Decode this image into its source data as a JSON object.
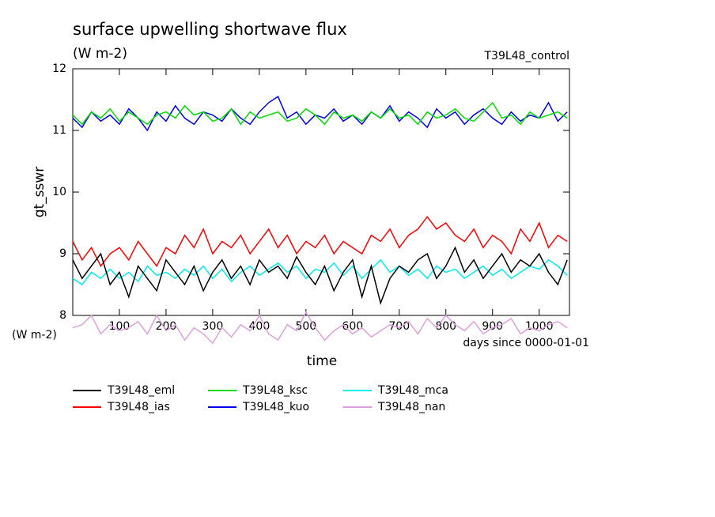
{
  "chart_data": {
    "type": "line",
    "title": "surface upwelling shortwave flux",
    "subtitle": "(W m-2)",
    "run_label": "T39L48_control",
    "y_label": "gt_sswr",
    "x_label": "time",
    "x_unit_note": "days since 0000-01-01",
    "value_unit_note": "(W m-2)",
    "xlim": [
      0,
      1065
    ],
    "ylim": [
      8,
      12
    ],
    "xticks": [
      100,
      200,
      300,
      400,
      500,
      600,
      700,
      800,
      900,
      1000
    ],
    "yticks": [
      8,
      9,
      10,
      11,
      12
    ],
    "x": [
      0,
      20,
      40,
      60,
      80,
      100,
      120,
      140,
      160,
      180,
      200,
      220,
      240,
      260,
      280,
      300,
      320,
      340,
      360,
      380,
      400,
      420,
      440,
      460,
      480,
      500,
      520,
      540,
      560,
      580,
      600,
      620,
      640,
      660,
      680,
      700,
      720,
      740,
      760,
      780,
      800,
      820,
      840,
      860,
      880,
      900,
      920,
      940,
      960,
      980,
      1000,
      1020,
      1040,
      1060
    ],
    "series": [
      {
        "name": "T39L48_eml",
        "color": "#000000",
        "values": [
          8.9,
          8.6,
          8.8,
          9.0,
          8.5,
          8.7,
          8.3,
          8.8,
          8.6,
          8.4,
          8.9,
          8.7,
          8.5,
          8.8,
          8.4,
          8.7,
          8.9,
          8.6,
          8.8,
          8.5,
          8.9,
          8.7,
          8.8,
          8.6,
          8.95,
          8.7,
          8.5,
          8.8,
          8.4,
          8.7,
          8.9,
          8.3,
          8.8,
          8.2,
          8.6,
          8.8,
          8.7,
          8.9,
          9.0,
          8.6,
          8.8,
          9.1,
          8.7,
          8.9,
          8.6,
          8.8,
          9.0,
          8.7,
          8.9,
          8.8,
          9.0,
          8.7,
          8.5,
          8.9
        ]
      },
      {
        "name": "T39L48_ias",
        "color": "#ff0000",
        "values": [
          9.2,
          8.9,
          9.1,
          8.8,
          9.0,
          9.1,
          8.9,
          9.2,
          9.0,
          8.8,
          9.1,
          9.0,
          9.3,
          9.1,
          9.4,
          9.0,
          9.2,
          9.1,
          9.3,
          9.0,
          9.2,
          9.4,
          9.1,
          9.3,
          9.0,
          9.2,
          9.1,
          9.3,
          9.0,
          9.2,
          9.1,
          9.0,
          9.3,
          9.2,
          9.4,
          9.1,
          9.3,
          9.4,
          9.6,
          9.4,
          9.5,
          9.3,
          9.2,
          9.4,
          9.1,
          9.3,
          9.2,
          9.0,
          9.4,
          9.2,
          9.5,
          9.1,
          9.3,
          9.2
        ]
      },
      {
        "name": "T39L48_ksc",
        "color": "#00dd00",
        "values": [
          11.25,
          11.1,
          11.3,
          11.2,
          11.35,
          11.15,
          11.3,
          11.2,
          11.1,
          11.25,
          11.3,
          11.2,
          11.4,
          11.25,
          11.3,
          11.15,
          11.2,
          11.35,
          11.1,
          11.3,
          11.2,
          11.25,
          11.3,
          11.15,
          11.2,
          11.35,
          11.25,
          11.1,
          11.3,
          11.2,
          11.25,
          11.15,
          11.3,
          11.2,
          11.35,
          11.2,
          11.25,
          11.1,
          11.3,
          11.2,
          11.25,
          11.35,
          11.2,
          11.15,
          11.3,
          11.45,
          11.2,
          11.25,
          11.1,
          11.3,
          11.2,
          11.25,
          11.3,
          11.2
        ]
      },
      {
        "name": "T39L48_kuo",
        "color": "#0000ee",
        "values": [
          11.2,
          11.05,
          11.3,
          11.15,
          11.25,
          11.1,
          11.35,
          11.2,
          11.0,
          11.3,
          11.15,
          11.4,
          11.2,
          11.1,
          11.3,
          11.25,
          11.15,
          11.35,
          11.2,
          11.1,
          11.3,
          11.45,
          11.55,
          11.2,
          11.3,
          11.1,
          11.25,
          11.2,
          11.35,
          11.15,
          11.25,
          11.1,
          11.3,
          11.2,
          11.4,
          11.15,
          11.3,
          11.2,
          11.05,
          11.35,
          11.2,
          11.3,
          11.1,
          11.25,
          11.35,
          11.2,
          11.1,
          11.3,
          11.15,
          11.25,
          11.2,
          11.45,
          11.15,
          11.3
        ]
      },
      {
        "name": "T39L48_mca",
        "color": "#00eeee",
        "values": [
          8.6,
          8.5,
          8.7,
          8.6,
          8.75,
          8.6,
          8.7,
          8.55,
          8.8,
          8.65,
          8.7,
          8.6,
          8.75,
          8.65,
          8.8,
          8.6,
          8.75,
          8.55,
          8.7,
          8.8,
          8.65,
          8.75,
          8.85,
          8.7,
          8.8,
          8.6,
          8.75,
          8.7,
          8.85,
          8.65,
          8.8,
          8.6,
          8.75,
          8.9,
          8.7,
          8.8,
          8.65,
          8.75,
          8.6,
          8.8,
          8.7,
          8.75,
          8.6,
          8.7,
          8.8,
          8.65,
          8.75,
          8.6,
          8.7,
          8.8,
          8.75,
          8.9,
          8.8,
          8.65
        ]
      },
      {
        "name": "T39L48_nan",
        "color": "#dda0dd",
        "values": [
          7.8,
          7.85,
          8.0,
          7.7,
          7.85,
          7.75,
          7.8,
          7.9,
          7.7,
          8.0,
          7.75,
          7.85,
          7.6,
          7.8,
          7.7,
          7.55,
          7.8,
          7.65,
          7.85,
          7.75,
          8.0,
          7.7,
          7.6,
          7.85,
          7.75,
          8.05,
          7.8,
          7.6,
          7.75,
          7.85,
          7.7,
          7.8,
          7.65,
          7.75,
          7.85,
          7.8,
          7.9,
          7.7,
          7.95,
          7.8,
          8.0,
          7.85,
          7.75,
          7.9,
          7.7,
          7.8,
          7.85,
          7.95,
          7.7,
          7.8,
          7.75,
          7.85,
          7.9,
          7.8
        ]
      }
    ]
  }
}
